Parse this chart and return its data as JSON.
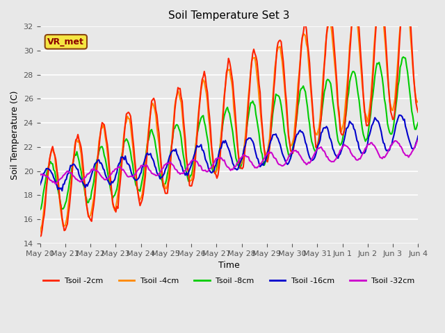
{
  "title": "Soil Temperature Set 3",
  "xlabel": "Time",
  "ylabel": "Soil Temperature (C)",
  "ylim": [
    14,
    32
  ],
  "annotation": "VR_met",
  "background_color": "#e8e8e8",
  "plot_bg_color": "#e8e8e8",
  "grid_color": "white",
  "series": {
    "Tsoil -2cm": {
      "color": "#ff2200",
      "lw": 1.5
    },
    "Tsoil -4cm": {
      "color": "#ff8800",
      "lw": 1.5
    },
    "Tsoil -8cm": {
      "color": "#00cc00",
      "lw": 1.5
    },
    "Tsoil -16cm": {
      "color": "#0000cc",
      "lw": 1.5
    },
    "Tsoil -32cm": {
      "color": "#cc00cc",
      "lw": 1.5
    }
  },
  "x_tick_labels": [
    "May 20",
    "May 21",
    "May 22",
    "May 23",
    "May 24",
    "May 25",
    "May 26",
    "May 27",
    "May 28",
    "May 29",
    "May 30",
    "May 31",
    "Jun 1",
    "Jun 2",
    "Jun 3",
    "Jun 4"
  ],
  "num_days": 15,
  "points_per_day": 24
}
